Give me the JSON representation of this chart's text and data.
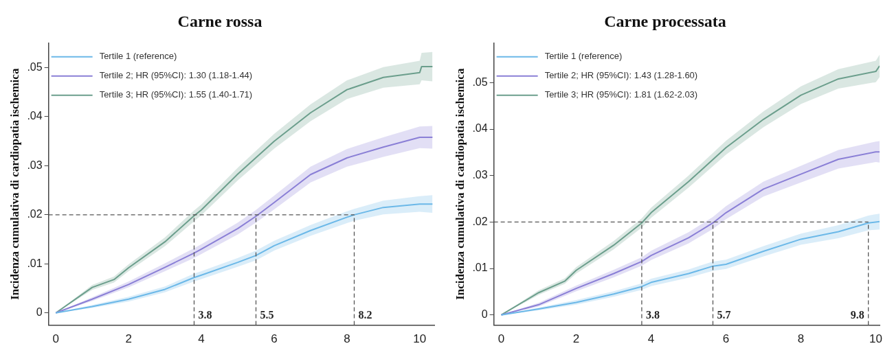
{
  "chart_data": [
    {
      "type": "line",
      "title": "Carne rossa",
      "ylabel": "Incidenza cumulativa di cardiopatia ischemica",
      "xlim": [
        -0.2,
        10.4
      ],
      "ylim": [
        -0.0025,
        0.055
      ],
      "xticks": [
        0,
        2,
        4,
        6,
        8,
        10
      ],
      "yticks": [
        {
          "value": 0,
          "label": "0"
        },
        {
          "value": 0.01,
          "label": ".01"
        },
        {
          "value": 0.02,
          "label": ".02"
        },
        {
          "value": 0.03,
          "label": ".03"
        },
        {
          "value": 0.04,
          "label": ".04"
        },
        {
          "value": 0.05,
          "label": ".05"
        }
      ],
      "grid": false,
      "legend": "top left",
      "line_style": "solid",
      "marker": "none",
      "series": [
        {
          "name": "Tertile 1 (reference)",
          "color": "#6bb8e8",
          "x": [
            0,
            1,
            2,
            3,
            3.8,
            4,
            5,
            5.5,
            6,
            7,
            8,
            8.2,
            9,
            10,
            10.35
          ],
          "values": [
            0,
            0.0013,
            0.0028,
            0.0048,
            0.0072,
            0.0077,
            0.0103,
            0.0117,
            0.0137,
            0.0168,
            0.0195,
            0.02,
            0.0215,
            0.0222,
            0.0222
          ],
          "lower": [
            0,
            0.001,
            0.0023,
            0.0042,
            0.0064,
            0.0069,
            0.0094,
            0.0107,
            0.0127,
            0.0157,
            0.0183,
            0.0188,
            0.0201,
            0.0206,
            0.0204
          ],
          "upper": [
            0,
            0.0016,
            0.0033,
            0.0054,
            0.008,
            0.0085,
            0.0112,
            0.0127,
            0.0147,
            0.0179,
            0.0207,
            0.0212,
            0.0229,
            0.0238,
            0.024
          ]
        },
        {
          "name": "Tertile 2; HR (95%CI): 1.30 (1.18-1.44)",
          "color": "#8a7fd6",
          "x": [
            0,
            1,
            2,
            3,
            3.8,
            4,
            5,
            5.5,
            6,
            7,
            8,
            9,
            10,
            10.35
          ],
          "values": [
            0,
            0.0028,
            0.0058,
            0.0093,
            0.0122,
            0.013,
            0.0172,
            0.0197,
            0.0225,
            0.0282,
            0.0316,
            0.0338,
            0.0358,
            0.0358
          ],
          "lower": [
            0,
            0.0024,
            0.0052,
            0.0085,
            0.0112,
            0.012,
            0.016,
            0.0184,
            0.0211,
            0.0266,
            0.0298,
            0.0318,
            0.0336,
            0.0335
          ],
          "upper": [
            0,
            0.0032,
            0.0064,
            0.0101,
            0.0132,
            0.014,
            0.0184,
            0.021,
            0.0239,
            0.0298,
            0.0334,
            0.0358,
            0.038,
            0.0381
          ]
        },
        {
          "name": "Tertile 3; HR (95%CI): 1.55 (1.40-1.71)",
          "color": "#6b9e8c",
          "x": [
            0,
            1,
            1.6,
            2,
            3,
            3.8,
            4,
            5,
            6,
            7,
            8,
            9,
            10,
            10.05,
            10.35
          ],
          "values": [
            0,
            0.0052,
            0.0068,
            0.0092,
            0.0145,
            0.0198,
            0.021,
            0.0283,
            0.035,
            0.0408,
            0.0455,
            0.048,
            0.049,
            0.0502,
            0.0502
          ],
          "lower": [
            0,
            0.0047,
            0.0062,
            0.0085,
            0.0136,
            0.0187,
            0.0199,
            0.027,
            0.0335,
            0.0391,
            0.0436,
            0.0459,
            0.0466,
            0.0474,
            0.0472
          ],
          "upper": [
            0,
            0.0057,
            0.0074,
            0.0099,
            0.0154,
            0.0209,
            0.0221,
            0.0296,
            0.0365,
            0.0425,
            0.0474,
            0.0501,
            0.0514,
            0.053,
            0.0532
          ]
        }
      ],
      "ref_lines": [
        {
          "axis": "y",
          "value": 0.02,
          "color": "#555555",
          "line_style": "dashed"
        },
        {
          "axis": "x",
          "value": 3.8,
          "label": "3.8",
          "color": "#555555",
          "line_style": "dashed"
        },
        {
          "axis": "x",
          "value": 5.5,
          "label": "5.5",
          "color": "#555555",
          "line_style": "dashed"
        },
        {
          "axis": "x",
          "value": 8.2,
          "label": "8.2",
          "color": "#555555",
          "line_style": "dashed"
        }
      ]
    },
    {
      "type": "line",
      "title": "Carne processata",
      "ylabel": "Incidenza cumulativa di cardiopatia ischemica",
      "xlim": [
        -0.2,
        10.1
      ],
      "ylim": [
        -0.0022,
        0.0585
      ],
      "xticks": [
        0,
        2,
        4,
        6,
        8,
        10
      ],
      "yticks": [
        {
          "value": 0,
          "label": "0"
        },
        {
          "value": 0.01,
          "label": ".01"
        },
        {
          "value": 0.02,
          "label": ".02"
        },
        {
          "value": 0.03,
          "label": ".03"
        },
        {
          "value": 0.04,
          "label": ".04"
        },
        {
          "value": 0.05,
          "label": ".05"
        }
      ],
      "grid": false,
      "legend": "top left",
      "line_style": "solid",
      "marker": "none",
      "series": [
        {
          "name": "Tertile 1 (reference)",
          "color": "#6bb8e8",
          "x": [
            0,
            1,
            2,
            3,
            3.75,
            4,
            5,
            5.65,
            6,
            7,
            8,
            9,
            9.8,
            10.1
          ],
          "values": [
            0,
            0.0013,
            0.0027,
            0.0045,
            0.0061,
            0.007,
            0.0089,
            0.0105,
            0.0109,
            0.0137,
            0.0163,
            0.0179,
            0.0198,
            0.0201
          ],
          "lower": [
            0,
            0.001,
            0.0022,
            0.0039,
            0.0054,
            0.0062,
            0.008,
            0.0095,
            0.0099,
            0.0126,
            0.0151,
            0.0165,
            0.0182,
            0.0184
          ],
          "upper": [
            0,
            0.0016,
            0.0032,
            0.0051,
            0.0068,
            0.0078,
            0.0098,
            0.0115,
            0.0119,
            0.0148,
            0.0175,
            0.0193,
            0.0214,
            0.0218
          ]
        },
        {
          "name": "Tertile 2; HR (95%CI): 1.43 (1.28-1.60)",
          "color": "#8a7fd6",
          "x": [
            0,
            1,
            2,
            3,
            3.75,
            4,
            5,
            5.65,
            6,
            7,
            8,
            9,
            10,
            10.1
          ],
          "values": [
            0,
            0.0022,
            0.0057,
            0.0089,
            0.0115,
            0.0128,
            0.0166,
            0.0198,
            0.022,
            0.0271,
            0.0303,
            0.0335,
            0.0351,
            0.0351
          ],
          "lower": [
            0,
            0.0018,
            0.0051,
            0.0081,
            0.0106,
            0.0118,
            0.0154,
            0.0185,
            0.0206,
            0.0255,
            0.0285,
            0.0315,
            0.0329,
            0.0328
          ],
          "upper": [
            0,
            0.0026,
            0.0063,
            0.0097,
            0.0124,
            0.0138,
            0.0178,
            0.0211,
            0.0234,
            0.0287,
            0.0321,
            0.0355,
            0.0373,
            0.0374
          ]
        },
        {
          "name": "Tertile 3; HR (95%CI): 1.81 (1.62-2.03)",
          "color": "#6b9e8c",
          "x": [
            0,
            1,
            1.7,
            2,
            3,
            3.75,
            4,
            5,
            6,
            7,
            8,
            9,
            10,
            10.1
          ],
          "values": [
            0,
            0.0048,
            0.0073,
            0.0096,
            0.015,
            0.0198,
            0.022,
            0.0287,
            0.036,
            0.0421,
            0.0473,
            0.0508,
            0.0524,
            0.0536
          ],
          "lower": [
            0,
            0.0043,
            0.0067,
            0.0089,
            0.0141,
            0.0188,
            0.0209,
            0.0274,
            0.0345,
            0.0404,
            0.0454,
            0.0487,
            0.0501,
            0.0512
          ],
          "upper": [
            0,
            0.0053,
            0.0079,
            0.0103,
            0.0159,
            0.0208,
            0.0231,
            0.03,
            0.0375,
            0.0438,
            0.0492,
            0.0529,
            0.0547,
            0.056
          ]
        }
      ],
      "ref_lines": [
        {
          "axis": "y",
          "value": 0.02,
          "color": "#555555",
          "line_style": "dashed"
        },
        {
          "axis": "x",
          "value": 3.75,
          "label": "3.8",
          "color": "#555555",
          "line_style": "dashed"
        },
        {
          "axis": "x",
          "value": 5.65,
          "label": "5.7",
          "color": "#555555",
          "line_style": "dashed"
        },
        {
          "axis": "x",
          "value": 9.8,
          "label": "9.8",
          "color": "#555555",
          "line_style": "dashed"
        }
      ]
    }
  ]
}
